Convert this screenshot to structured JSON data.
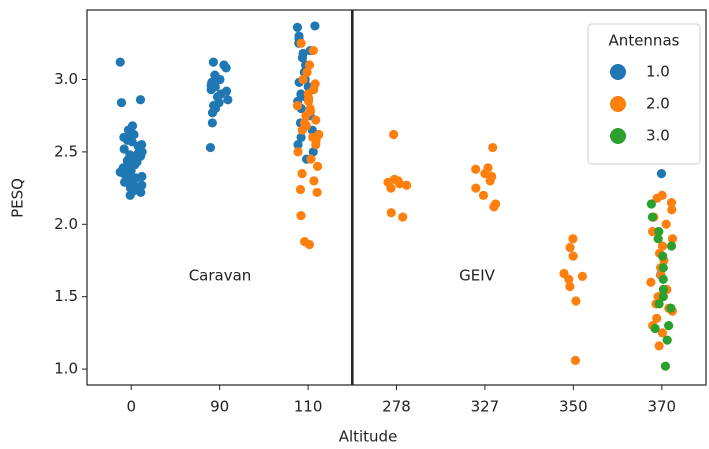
{
  "chart_data": {
    "type": "strip",
    "xlabel": "Altitude",
    "ylabel": "PESQ",
    "categories": [
      "0",
      "90",
      "110",
      "278",
      "327",
      "350",
      "370"
    ],
    "ylim": [
      0.89,
      3.48
    ],
    "yticks": [
      {
        "value": 1,
        "label": "1.0"
      },
      {
        "value": 1.5,
        "label": "1.5"
      },
      {
        "value": 2,
        "label": "2.0"
      },
      {
        "value": 2.5,
        "label": "2.5"
      },
      {
        "value": 3,
        "label": "3.0"
      }
    ],
    "legend_title": "Antennas",
    "legend": "upper right",
    "annotations": [
      "Caravan",
      "GEIV"
    ],
    "series": [
      {
        "name": "1.0",
        "color": "#1f77b4",
        "x": [
          "0",
          "0",
          "0",
          "0",
          "0",
          "0",
          "0",
          "0",
          "0",
          "0",
          "0",
          "0",
          "0",
          "0",
          "0",
          "0",
          "0",
          "0",
          "0",
          "0",
          "0",
          "0",
          "0",
          "0",
          "0",
          "0",
          "0",
          "0",
          "0",
          "0",
          "0",
          "0",
          "0",
          "0",
          "0",
          "0",
          "0",
          "0",
          "0",
          "0",
          "0",
          "0",
          "0",
          "90",
          "90",
          "90",
          "90",
          "90",
          "90",
          "90",
          "90",
          "90",
          "90",
          "90",
          "90",
          "90",
          "90",
          "90",
          "90",
          "90",
          "90",
          "90",
          "110",
          "110",
          "110",
          "110",
          "110",
          "110",
          "110",
          "110",
          "110",
          "110",
          "110",
          "110",
          "110",
          "110",
          "110",
          "110",
          "110",
          "110",
          "110",
          "110",
          "110",
          "110",
          "110",
          "110",
          "370",
          "370",
          "370"
        ],
        "values": [
          3.12,
          2.86,
          2.84,
          2.68,
          2.65,
          2.63,
          2.62,
          2.6,
          2.58,
          2.57,
          2.55,
          2.54,
          2.52,
          2.5,
          2.49,
          2.48,
          2.47,
          2.46,
          2.45,
          2.44,
          2.43,
          2.42,
          2.41,
          2.4,
          2.39,
          2.38,
          2.37,
          2.36,
          2.35,
          2.34,
          2.33,
          2.32,
          2.31,
          2.3,
          2.29,
          2.28,
          2.27,
          2.26,
          2.25,
          2.24,
          2.23,
          2.22,
          2.2,
          3.12,
          3.1,
          3.08,
          3.03,
          3.0,
          2.98,
          2.96,
          2.95,
          2.93,
          2.92,
          2.9,
          2.88,
          2.86,
          2.84,
          2.82,
          2.8,
          2.77,
          2.7,
          2.53,
          3.37,
          3.36,
          3.3,
          3.25,
          3.2,
          3.15,
          3.1,
          3.05,
          3.0,
          2.95,
          2.9,
          2.85,
          2.8,
          2.75,
          2.7,
          2.65,
          2.6,
          2.55,
          2.5,
          2.45,
          3.28,
          3.18,
          2.98,
          2.88,
          2.35,
          1.5,
          1.65
        ]
      },
      {
        "name": "2.0",
        "color": "#ff7f0e",
        "x": [
          "110",
          "110",
          "110",
          "110",
          "110",
          "110",
          "110",
          "110",
          "110",
          "110",
          "110",
          "110",
          "110",
          "110",
          "110",
          "110",
          "110",
          "110",
          "110",
          "110",
          "110",
          "110",
          "110",
          "110",
          "110",
          "110",
          "110",
          "110",
          "110",
          "110",
          "110",
          "110",
          "278",
          "278",
          "278",
          "278",
          "278",
          "278",
          "278",
          "278",
          "278",
          "327",
          "327",
          "327",
          "327",
          "327",
          "327",
          "327",
          "327",
          "327",
          "327",
          "350",
          "350",
          "350",
          "350",
          "350",
          "350",
          "350",
          "350",
          "350",
          "370",
          "370",
          "370",
          "370",
          "370",
          "370",
          "370",
          "370",
          "370",
          "370",
          "370",
          "370",
          "370",
          "370",
          "370",
          "370",
          "370",
          "370",
          "370",
          "370",
          "370",
          "370",
          "370"
        ],
        "values": [
          3.25,
          3.2,
          3.1,
          3.05,
          3.0,
          2.97,
          2.93,
          2.9,
          2.87,
          2.85,
          2.82,
          2.8,
          2.78,
          2.75,
          2.72,
          2.7,
          2.68,
          2.65,
          2.62,
          2.6,
          2.58,
          2.55,
          2.5,
          2.45,
          2.4,
          2.35,
          2.3,
          2.24,
          2.22,
          2.06,
          1.88,
          1.86,
          2.62,
          2.31,
          2.3,
          2.29,
          2.28,
          2.27,
          2.25,
          2.08,
          2.05,
          2.53,
          2.39,
          2.38,
          2.35,
          2.33,
          2.3,
          2.25,
          2.2,
          2.14,
          2.12,
          1.9,
          1.84,
          1.78,
          1.66,
          1.64,
          1.62,
          1.57,
          1.47,
          1.06,
          2.2,
          2.18,
          2.15,
          2.1,
          2.05,
          2.0,
          1.95,
          1.9,
          1.85,
          1.8,
          1.75,
          1.7,
          1.65,
          1.6,
          1.55,
          1.5,
          1.45,
          1.42,
          1.4,
          1.35,
          1.3,
          1.25,
          1.16
        ]
      },
      {
        "name": "3.0",
        "color": "#2ca02c",
        "x": [
          "370",
          "370",
          "370",
          "370",
          "370",
          "370",
          "370",
          "370",
          "370",
          "370",
          "370",
          "370",
          "370",
          "370",
          "370",
          "370"
        ],
        "values": [
          2.14,
          2.05,
          1.95,
          1.9,
          1.85,
          1.78,
          1.7,
          1.62,
          1.55,
          1.5,
          1.45,
          1.42,
          1.3,
          1.28,
          1.2,
          1.02
        ]
      }
    ]
  }
}
